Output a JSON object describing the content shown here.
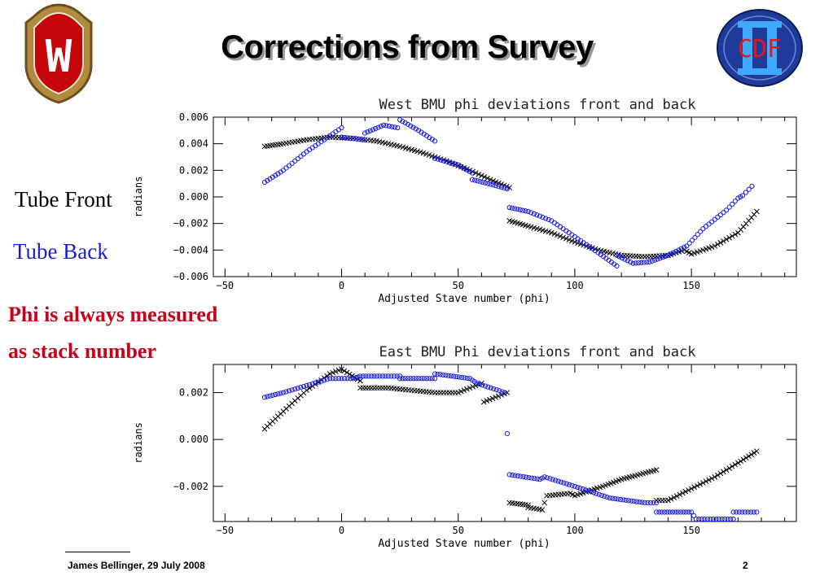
{
  "slide": {
    "title": "Corrections from Survey",
    "legend_front": "Tube Front",
    "legend_back": "Tube Back",
    "note_line1": "Phi is always measured",
    "note_line2": "as stack number",
    "footer_author": "James Bellinger,  29 July 2008",
    "footer_page": "2",
    "logo_left": "W",
    "logo_right": "CDF"
  },
  "colors": {
    "front": "#000000",
    "back": "#1a1ae6",
    "note": "#c8001a"
  },
  "chart_data": [
    {
      "type": "scatter",
      "title": "West BMU phi deviations front and back",
      "xlabel": "Adjusted Stave number (phi)",
      "ylabel": "radians",
      "xlim": [
        -55,
        195
      ],
      "ylim": [
        -0.006,
        0.006
      ],
      "xticks": [
        -50,
        0,
        50,
        100,
        150
      ],
      "xtick_labels": [
        "−50",
        "0",
        "50",
        "100",
        "150"
      ],
      "yticks": [
        -0.006,
        -0.004,
        -0.002,
        0.0,
        0.002,
        0.004,
        0.006
      ],
      "ytick_labels": [
        "−0.006",
        "−0.004",
        "−0.002",
        "0.000",
        "0.002",
        "0.004",
        "0.006"
      ],
      "series": [
        {
          "marker": "x",
          "color": "#000000",
          "points": [
            [
              -33,
              0.0038
            ],
            [
              -25,
              0.004
            ],
            [
              -15,
              0.0043
            ],
            [
              -5,
              0.0045
            ],
            [
              5,
              0.0044
            ],
            [
              15,
              0.0042
            ],
            [
              25,
              0.0038
            ],
            [
              35,
              0.0033
            ],
            [
              45,
              0.0027
            ],
            [
              55,
              0.002
            ],
            [
              65,
              0.0012
            ],
            [
              72,
              0.0007
            ],
            [
              72,
              -0.0018
            ],
            [
              80,
              -0.0022
            ],
            [
              90,
              -0.0027
            ],
            [
              100,
              -0.0034
            ],
            [
              110,
              -0.004
            ],
            [
              120,
              -0.0044
            ],
            [
              130,
              -0.0045
            ],
            [
              140,
              -0.0044
            ],
            [
              147,
              -0.004
            ],
            [
              150,
              -0.0043
            ],
            [
              160,
              -0.0037
            ],
            [
              170,
              -0.0027
            ],
            [
              178,
              -0.0011
            ]
          ]
        },
        {
          "marker": "o",
          "color": "#1a1ae6",
          "points": [
            [
              -33,
              0.0011
            ],
            [
              -25,
              0.002
            ],
            [
              -15,
              0.0034
            ],
            [
              -5,
              0.0046
            ],
            [
              0,
              0.0052
            ],
            [
              0,
              0.0045
            ],
            [
              10,
              0.0043
            ],
            [
              10,
              0.0048
            ],
            [
              18,
              0.0054
            ],
            [
              24,
              0.0052
            ],
            [
              25,
              0.0058
            ],
            [
              33,
              0.005
            ],
            [
              40,
              0.0042
            ],
            [
              40,
              0.0029
            ],
            [
              50,
              0.0024
            ],
            [
              56,
              0.0018
            ],
            [
              56,
              0.0013
            ],
            [
              65,
              0.0009
            ],
            [
              71,
              0.0006
            ],
            [
              72,
              -0.0008
            ],
            [
              80,
              -0.0011
            ],
            [
              90,
              -0.0018
            ],
            [
              100,
              -0.003
            ],
            [
              110,
              -0.0042
            ],
            [
              118,
              -0.0052
            ],
            [
              118,
              -0.0044
            ],
            [
              125,
              -0.005
            ],
            [
              132,
              -0.0049
            ],
            [
              140,
              -0.0044
            ],
            [
              148,
              -0.0037
            ],
            [
              155,
              -0.0024
            ],
            [
              165,
              -0.001
            ],
            [
              170,
              -0.0001
            ],
            [
              172,
              0.0001
            ],
            [
              176,
              0.0008
            ]
          ]
        }
      ]
    },
    {
      "type": "scatter",
      "title": "East BMU Phi deviations front and back",
      "xlabel": "Adjusted Stave number (phi)",
      "ylabel": "radians",
      "xlim": [
        -55,
        195
      ],
      "ylim": [
        -0.0035,
        0.0032
      ],
      "xticks": [
        -50,
        0,
        50,
        100,
        150
      ],
      "xtick_labels": [
        "−50",
        "0",
        "50",
        "100",
        "150"
      ],
      "yticks": [
        -0.002,
        0.0,
        0.002
      ],
      "ytick_labels": [
        "−0.002",
        "0.000",
        "0.002"
      ],
      "series": [
        {
          "marker": "x",
          "color": "#000000",
          "points": [
            [
              -33,
              0.00045
            ],
            [
              -25,
              0.0012
            ],
            [
              -15,
              0.0021
            ],
            [
              -5,
              0.0028
            ],
            [
              0,
              0.003
            ],
            [
              8,
              0.0025
            ],
            [
              8,
              0.0022
            ],
            [
              20,
              0.0022
            ],
            [
              30,
              0.0021
            ],
            [
              40,
              0.002
            ],
            [
              50,
              0.002
            ],
            [
              60,
              0.0024
            ],
            [
              61,
              0.0016
            ],
            [
              71,
              0.002
            ],
            [
              72,
              -0.0027
            ],
            [
              80,
              -0.0028
            ],
            [
              80,
              -0.0029
            ],
            [
              86,
              -0.003
            ],
            [
              88,
              -0.0024
            ],
            [
              98,
              -0.0023
            ],
            [
              100,
              -0.0024
            ],
            [
              112,
              -0.002
            ],
            [
              120,
              -0.0017
            ],
            [
              135,
              -0.0013
            ],
            [
              135,
              -0.0026
            ],
            [
              140,
              -0.0026
            ],
            [
              150,
              -0.0021
            ],
            [
              160,
              -0.0016
            ],
            [
              170,
              -0.001
            ],
            [
              178,
              -0.0005
            ]
          ]
        },
        {
          "marker": "o",
          "color": "#1a1ae6",
          "points": [
            [
              -33,
              0.0018
            ],
            [
              -25,
              0.002
            ],
            [
              -15,
              0.0023
            ],
            [
              -5,
              0.0026
            ],
            [
              5,
              0.0026
            ],
            [
              8,
              0.0027
            ],
            [
              20,
              0.0027
            ],
            [
              25,
              0.0027
            ],
            [
              25,
              0.0026
            ],
            [
              40,
              0.0026
            ],
            [
              40,
              0.0028
            ],
            [
              55,
              0.0026
            ],
            [
              58,
              0.0024
            ],
            [
              70,
              0.002
            ],
            [
              72,
              -0.0015
            ],
            [
              85,
              -0.0017
            ],
            [
              87,
              -0.0016
            ],
            [
              100,
              -0.002
            ],
            [
              115,
              -0.0025
            ],
            [
              130,
              -0.0027
            ],
            [
              135,
              -0.0027
            ],
            [
              135,
              -0.0031
            ],
            [
              150,
              -0.0031
            ],
            [
              152,
              -0.0034
            ],
            [
              168,
              -0.0034
            ],
            [
              168,
              -0.0031
            ],
            [
              178,
              -0.0031
            ]
          ]
        }
      ]
    }
  ]
}
